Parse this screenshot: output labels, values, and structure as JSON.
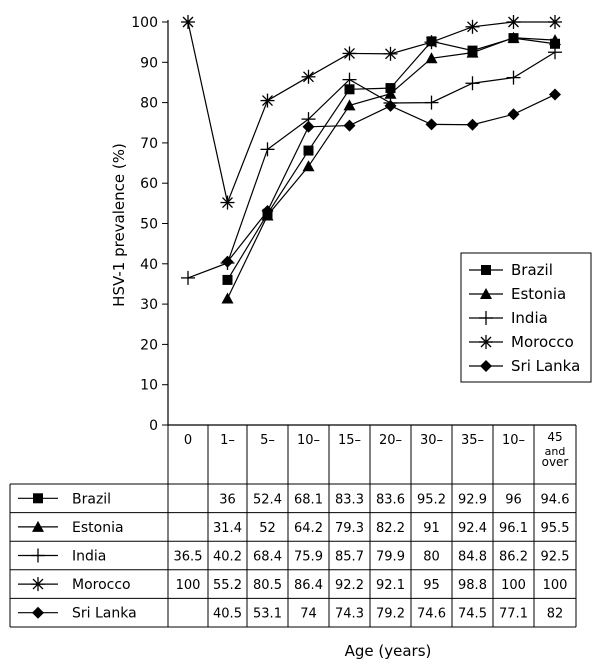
{
  "chart_data": {
    "type": "line",
    "ylabel": "HSV-1 prevalence (%)",
    "xlabel": "Age (years)",
    "ylim": [
      0,
      100
    ],
    "y_ticks": [
      "0",
      "10",
      "20",
      "30",
      "40",
      "50",
      "60",
      "70",
      "80",
      "90",
      "100"
    ],
    "categories": [
      "0",
      "1–",
      "5–",
      "10–",
      "15–",
      "20–",
      "30–",
      "35–",
      "10–",
      "45 and over"
    ],
    "grid": false,
    "legend_position": "right",
    "series": [
      {
        "name": "Brazil",
        "marker": "square",
        "values": [
          null,
          36,
          52.4,
          68.1,
          83.3,
          83.6,
          95.2,
          92.9,
          96,
          94.6
        ],
        "cells": [
          "",
          "36",
          "52.4",
          "68.1",
          "83.3",
          "83.6",
          "95.2",
          "92.9",
          "96",
          "94.6"
        ]
      },
      {
        "name": "Estonia",
        "marker": "triangle",
        "values": [
          null,
          31.4,
          52,
          64.2,
          79.3,
          82.2,
          91,
          92.4,
          96.1,
          95.5
        ],
        "cells": [
          "",
          "31.4",
          "52",
          "64.2",
          "79.3",
          "82.2",
          "91",
          "92.4",
          "96.1",
          "95.5"
        ]
      },
      {
        "name": "India",
        "marker": "plus",
        "values": [
          36.5,
          40.2,
          68.4,
          75.9,
          85.7,
          79.9,
          80,
          84.8,
          86.2,
          92.5
        ],
        "cells": [
          "36.5",
          "40.2",
          "68.4",
          "75.9",
          "85.7",
          "79.9",
          "80",
          "84.8",
          "86.2",
          "92.5"
        ]
      },
      {
        "name": "Morocco",
        "marker": "asterisk",
        "values": [
          100,
          55.2,
          80.5,
          86.4,
          92.2,
          92.1,
          95,
          98.8,
          100,
          100
        ],
        "cells": [
          "100",
          "55.2",
          "80.5",
          "86.4",
          "92.2",
          "92.1",
          "95",
          "98.8",
          "100",
          "100"
        ]
      },
      {
        "name": "Sri Lanka",
        "marker": "diamond",
        "values": [
          null,
          40.5,
          53.1,
          74,
          74.3,
          79.2,
          74.6,
          74.5,
          77.1,
          82
        ],
        "cells": [
          "",
          "40.5",
          "53.1",
          "74",
          "74.3",
          "79.2",
          "74.6",
          "74.5",
          "77.1",
          "82"
        ]
      }
    ]
  }
}
